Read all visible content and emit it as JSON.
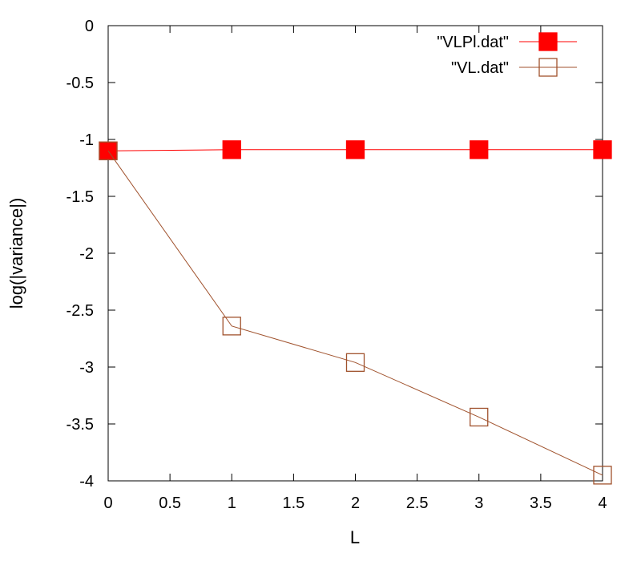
{
  "chart_data": {
    "type": "line",
    "title": "",
    "xlabel": "L",
    "ylabel": "log(|variance|)",
    "xlim": [
      0,
      4
    ],
    "ylim": [
      -4,
      0
    ],
    "x_ticks": [
      0,
      0.5,
      1,
      1.5,
      2,
      2.5,
      3,
      3.5,
      4
    ],
    "x_tick_labels": [
      "0",
      "0.5",
      "1",
      "1.5",
      "2",
      "2.5",
      "3",
      "3.5",
      "4"
    ],
    "y_ticks": [
      0,
      -0.5,
      -1,
      -1.5,
      -2,
      -2.5,
      -3,
      -3.5,
      -4
    ],
    "y_tick_labels": [
      "0",
      "-0.5",
      "-1",
      "-1.5",
      "-2",
      "-2.5",
      "-3",
      "-3.5",
      "-4"
    ],
    "grid": false,
    "legend_position": "top-right",
    "series": [
      {
        "name": "\"VLPl.dat\"",
        "marker": "filled-square",
        "color": "#ff0000",
        "x": [
          0,
          1,
          2,
          3,
          4
        ],
        "y": [
          -1.1,
          -1.09,
          -1.09,
          -1.09,
          -1.09
        ]
      },
      {
        "name": "\"VL.dat\"",
        "marker": "open-square",
        "color": "#a0522d",
        "x": [
          0,
          1,
          2,
          3,
          4
        ],
        "y": [
          -1.1,
          -2.64,
          -2.96,
          -3.44,
          -3.95
        ]
      }
    ]
  }
}
